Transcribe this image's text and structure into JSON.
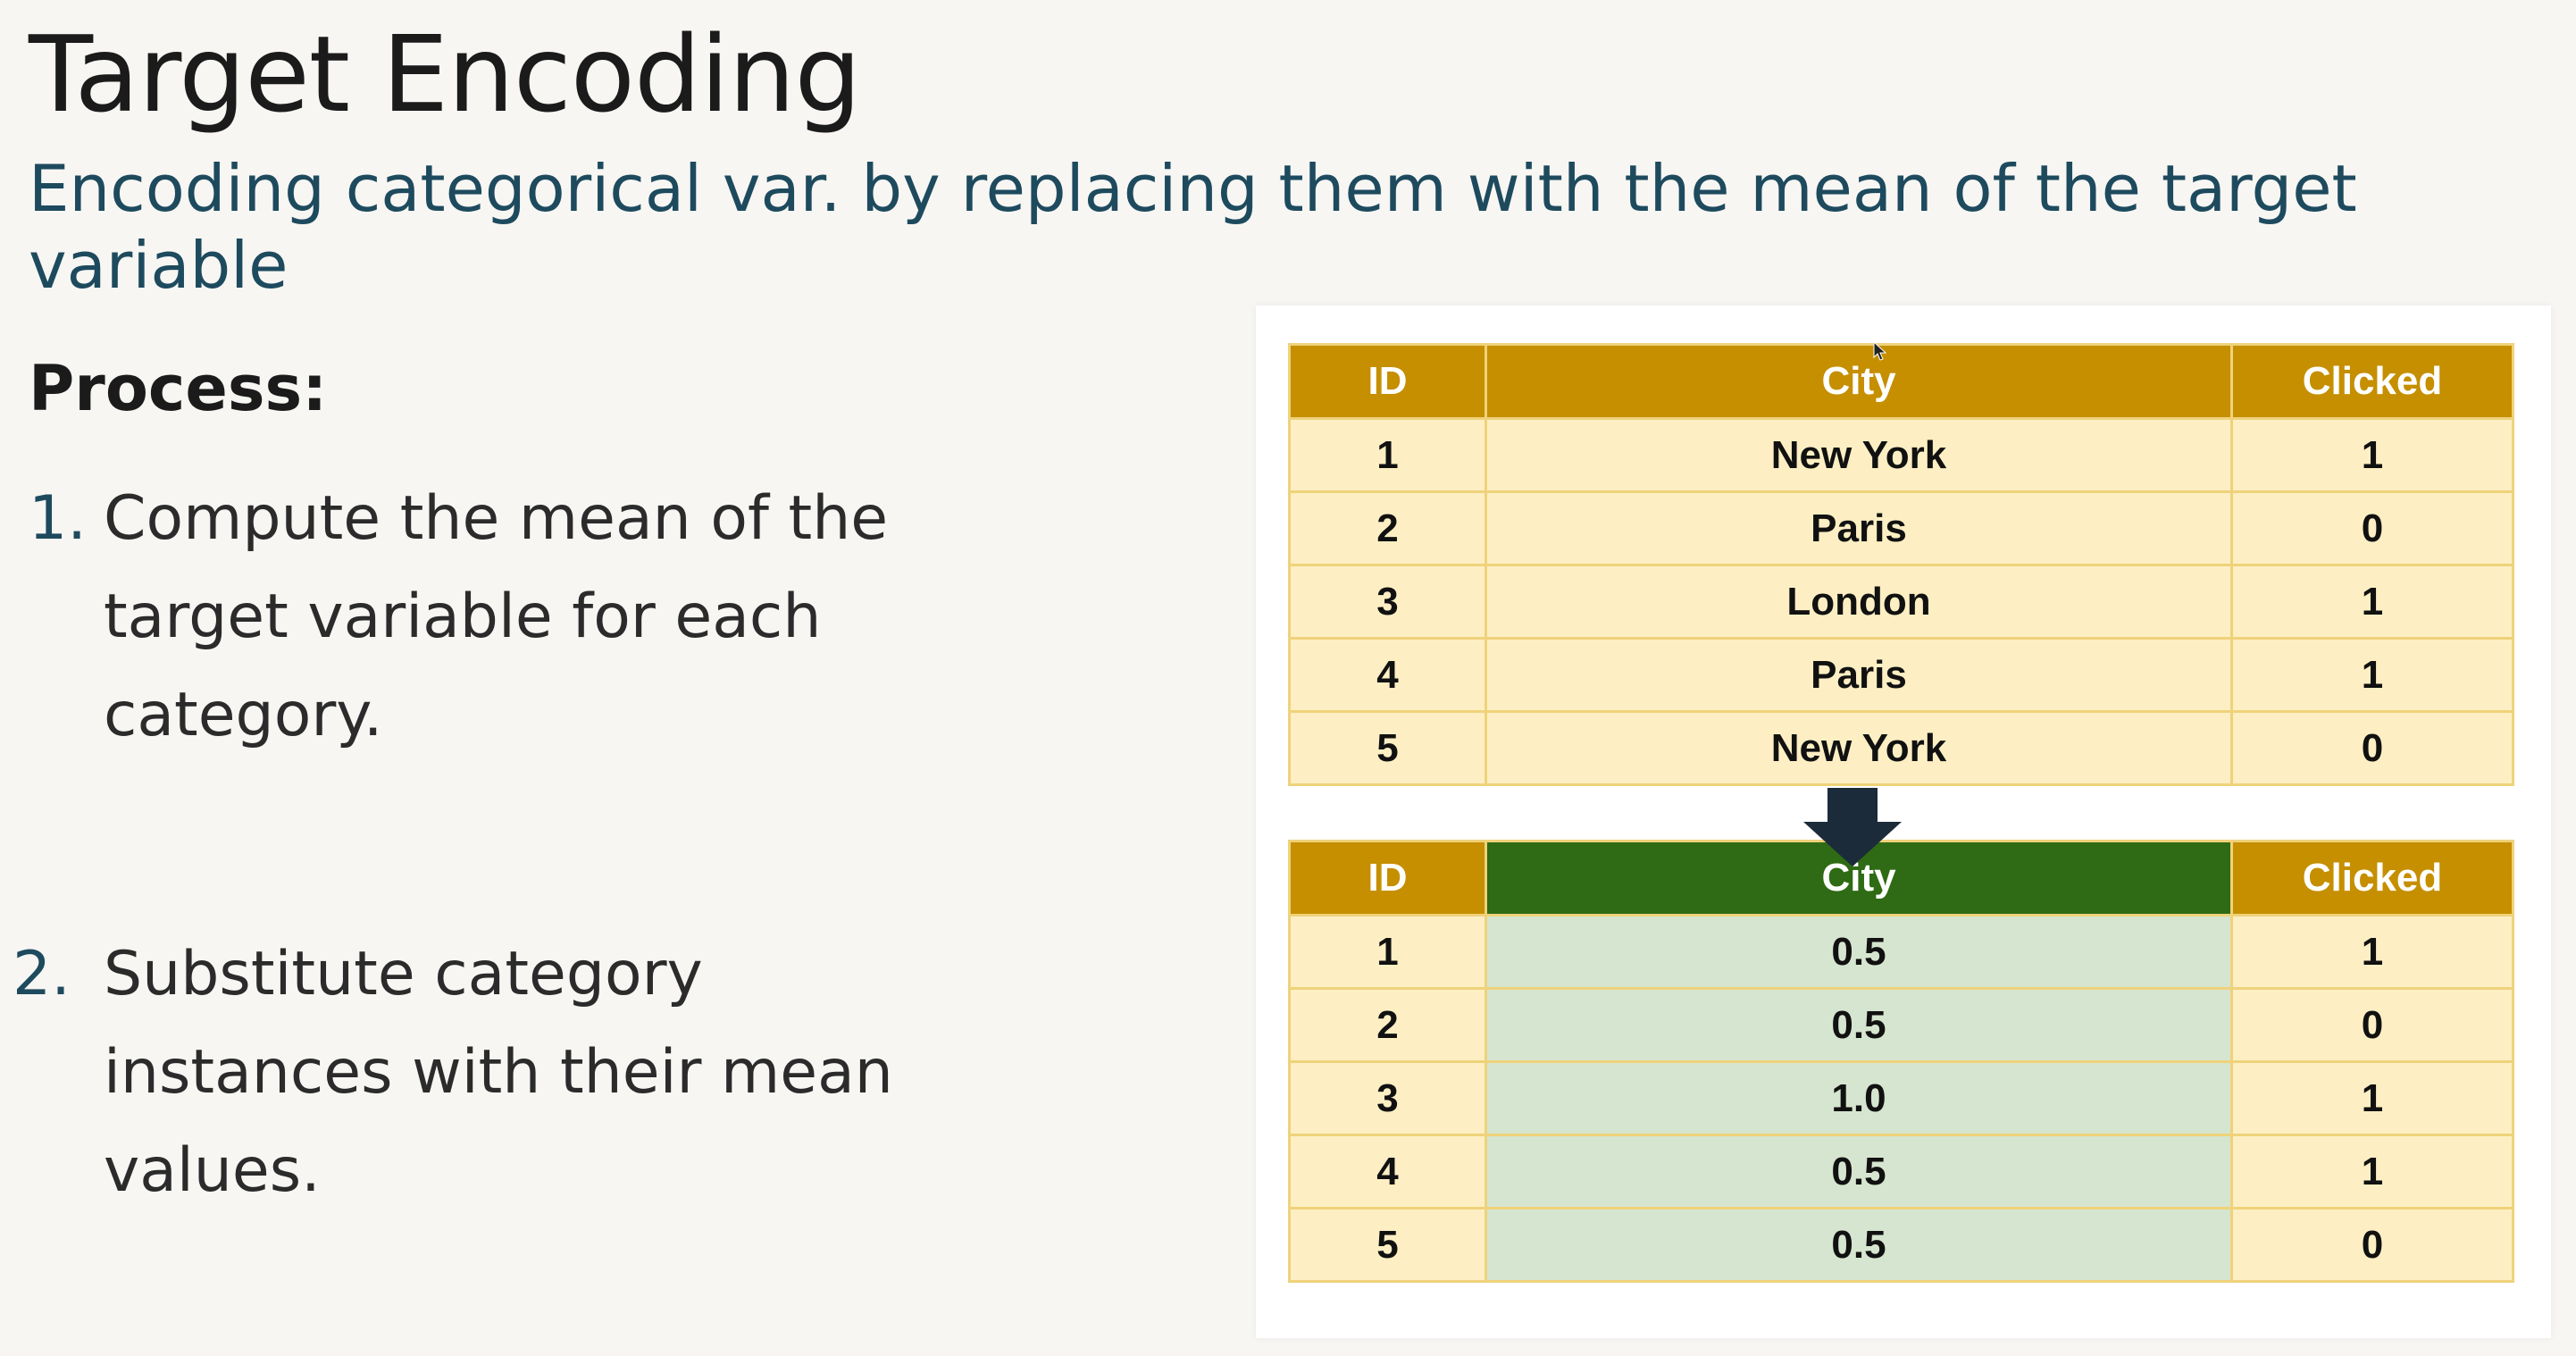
{
  "slide": {
    "title": "Target Encoding",
    "subtitle": "Encoding categorical var. by replacing them with the mean of the target variable",
    "process_heading": "Process:",
    "steps": [
      {
        "number": "1.",
        "text": "Compute the mean of the target variable for each category."
      },
      {
        "number": "2.",
        "text": "Substitute category instances with their mean values."
      }
    ]
  },
  "original_table": {
    "headers": [
      "ID",
      "City",
      "Clicked"
    ],
    "rows": [
      [
        "1",
        "New York",
        "1"
      ],
      [
        "2",
        "Paris",
        "0"
      ],
      [
        "3",
        "London",
        "1"
      ],
      [
        "4",
        "Paris",
        "1"
      ],
      [
        "5",
        "New York",
        "0"
      ]
    ]
  },
  "encoded_table": {
    "headers": [
      "ID",
      "City",
      "Clicked"
    ],
    "rows": [
      [
        "1",
        "0.5",
        "1"
      ],
      [
        "2",
        "0.5",
        "0"
      ],
      [
        "3",
        "1.0",
        "1"
      ],
      [
        "4",
        "0.5",
        "1"
      ],
      [
        "5",
        "0.5",
        "0"
      ]
    ]
  },
  "icons": {
    "transform_arrow": "arrow-down-icon",
    "cursor": "mouse-cursor-icon"
  },
  "colors": {
    "header_gold": "#c58f00",
    "row_cream": "#fdefc3",
    "header_green": "#2e6b14",
    "cell_green": "#d6e5cf",
    "subtitle_blue": "#1e4a5e",
    "arrow": "#1c2b3a"
  }
}
